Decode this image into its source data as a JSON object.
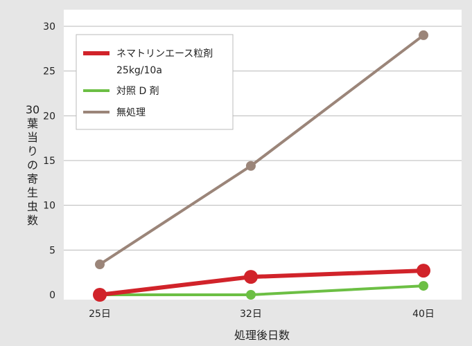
{
  "chart_data": {
    "type": "line",
    "title": "",
    "xlabel": "処理後日数",
    "ylabel": "30葉当りの寄生虫数",
    "categories": [
      "25日",
      "32日",
      "40日"
    ],
    "x": [
      25,
      32,
      40
    ],
    "ylim": [
      0,
      30
    ],
    "yticks": [
      0,
      5,
      10,
      15,
      20,
      25,
      30
    ],
    "grid": "horizontal",
    "legend_position": "top-left",
    "series": [
      {
        "name": "ネマトリンエース粒剤",
        "name_line2": "25kg/10a",
        "values": [
          0,
          2,
          2.7
        ],
        "color": "#d1232a"
      },
      {
        "name": "対照 D 剤",
        "values": [
          0,
          0,
          1
        ],
        "color": "#6cbf44"
      },
      {
        "name": "無処理",
        "values": [
          3.4,
          14.4,
          29
        ],
        "color": "#9b8579"
      }
    ]
  }
}
